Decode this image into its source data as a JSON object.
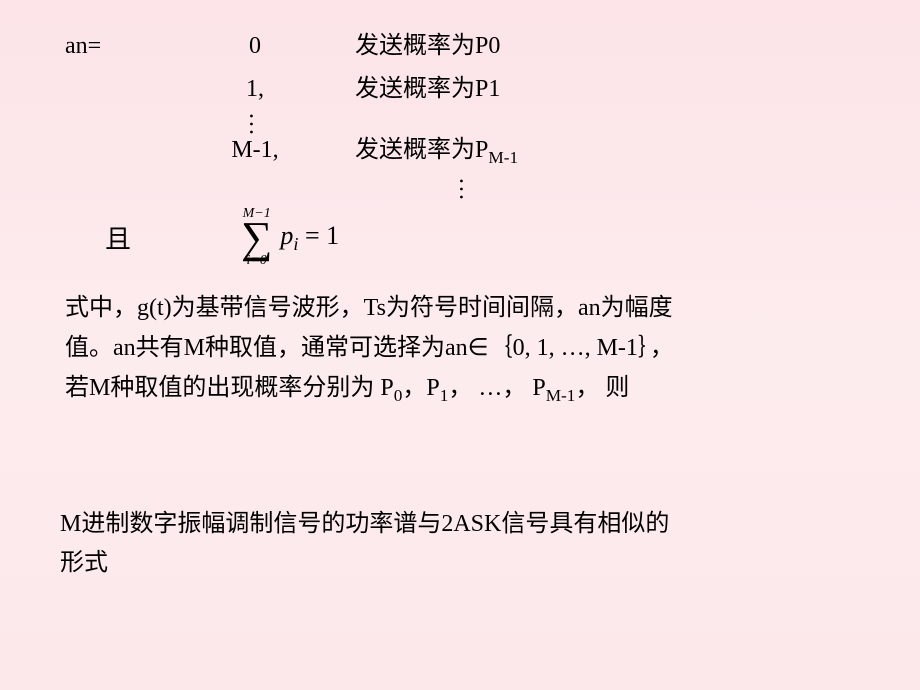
{
  "cases": {
    "label": "an=",
    "rows": [
      {
        "value": "0",
        "prob_prefix": "发送概率为",
        "prob_sym": "P0"
      },
      {
        "value": "1,",
        "prob_prefix": "发送概率为",
        "prob_sym": "P1"
      },
      {
        "value": "M-1,",
        "prob_prefix": "发送概率为",
        "prob_sym": "P",
        "prob_sub": "M-1"
      }
    ]
  },
  "sum": {
    "qie": "且",
    "upper": "M−1",
    "lower": "i=0",
    "sigma": "∑",
    "body_var": "p",
    "body_sub": "i",
    "eq": " = ",
    "rhs": "1"
  },
  "para1": {
    "l1a": "式中，",
    "l1b": "g(t)",
    "l1c": "为基带信号波形，",
    "l1d": "Ts",
    "l1e": "为符号时间间隔，",
    "l1f": "an",
    "l1g": "为幅度",
    "l2a": "值。",
    "l2b": "an",
    "l2c": "共有",
    "l2d": "M",
    "l2e": "种取值，通常可选择为",
    "l2f": "an",
    "l2g": "∈｛",
    "l2h": "0, 1, …, M-1",
    "l2i": "｝，",
    "l3a": "若",
    "l3b": "M",
    "l3c": "种取值的出现概率分别为 ",
    "l3d": "P",
    "l3d_sub": "0",
    "l3e": "，",
    "l3f": "P",
    "l3f_sub": "1",
    "l3g": "，  …， ",
    "l3h": "P",
    "l3h_sub": "M-1",
    "l3i": "， 则"
  },
  "para2": {
    "l1a": "M",
    "l1b": "进制数字振幅调制信号的功率谱与",
    "l1c": "2ASK",
    "l1d": "信号具有相似的",
    "l2": "形式"
  },
  "colors": {
    "bg_top": "#fce4e8",
    "bg_mid": "#fdecee",
    "bg_bot": "#fce8ea",
    "text": "#000000"
  }
}
